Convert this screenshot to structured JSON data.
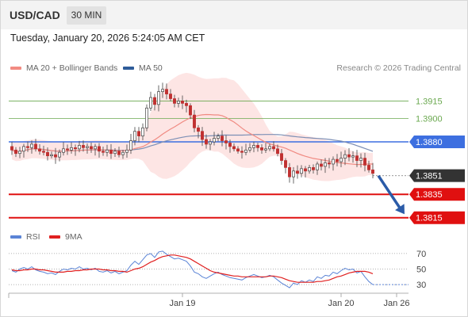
{
  "header": {
    "pair": "USD/CAD",
    "timeframe": "30 MIN",
    "timestamp": "Tuesday, January 20, 2026 5:24:05 AM CET"
  },
  "legend": {
    "ma20": {
      "label": "MA 20 + Bollinger Bands",
      "color": "#f28b82"
    },
    "ma50": {
      "label": "MA 50",
      "color": "#2e5c99"
    },
    "credit": "Research © 2026 Trading Central"
  },
  "rsi_legend": {
    "rsi": {
      "label": "RSI",
      "color": "#5b84d6"
    },
    "ma9": {
      "label": "9MA",
      "color": "#e02020"
    }
  },
  "chart_data": [
    {
      "type": "candlestick",
      "title": "USD/CAD",
      "ylim": [
        1.3808,
        1.3935
      ],
      "x_ticks": [
        {
          "index": 43,
          "label": "Jan 19"
        },
        {
          "index": 83,
          "label": "Jan 20"
        },
        {
          "index": 97,
          "label": "Jan 26"
        }
      ],
      "levels": [
        {
          "value": 1.3915,
          "label": "1.3915",
          "role": "resistance",
          "color": "#6aa84f"
        },
        {
          "value": 1.39,
          "label": "1.3900",
          "role": "resistance",
          "color": "#6aa84f"
        },
        {
          "value": 1.388,
          "label": "1.3880",
          "role": "pivot",
          "color": "#3d6fe0"
        },
        {
          "value": 1.3851,
          "label": "1.3851",
          "role": "last-price",
          "color": "#333333"
        },
        {
          "value": 1.3835,
          "label": "1.3835",
          "role": "support",
          "color": "#e01010"
        },
        {
          "value": 1.3815,
          "label": "1.3815",
          "role": "support",
          "color": "#e01010"
        }
      ],
      "forecast_arrow": {
        "from": 1.3851,
        "to": 1.3818
      },
      "closes": [
        1.3873,
        1.387,
        1.3872,
        1.3876,
        1.3875,
        1.3878,
        1.3874,
        1.3872,
        1.3871,
        1.3868,
        1.3869,
        1.3867,
        1.3871,
        1.3874,
        1.3873,
        1.3875,
        1.3874,
        1.3877,
        1.3875,
        1.3876,
        1.3874,
        1.3876,
        1.3872,
        1.3871,
        1.3873,
        1.387,
        1.3872,
        1.3869,
        1.3871,
        1.3873,
        1.3881,
        1.3889,
        1.3885,
        1.3892,
        1.3909,
        1.3918,
        1.3912,
        1.3923,
        1.3925,
        1.3921,
        1.3917,
        1.3913,
        1.3915,
        1.3913,
        1.3911,
        1.3903,
        1.3892,
        1.3889,
        1.3882,
        1.3878,
        1.388,
        1.3883,
        1.3885,
        1.3881,
        1.3879,
        1.3876,
        1.3874,
        1.3872,
        1.3871,
        1.3873,
        1.3875,
        1.3877,
        1.3875,
        1.3873,
        1.3874,
        1.3876,
        1.3874,
        1.387,
        1.3864,
        1.3858,
        1.385,
        1.3855,
        1.3853,
        1.3857,
        1.3855,
        1.3858,
        1.3856,
        1.3861,
        1.3859,
        1.3862,
        1.3861,
        1.3865,
        1.3863,
        1.3866,
        1.3869,
        1.3867,
        1.3868,
        1.3864,
        1.3866,
        1.386,
        1.3856,
        1.3853
      ],
      "series": [
        {
          "name": "MA 20",
          "color": "#f28b82"
        },
        {
          "name": "MA 50",
          "color": "#2e5c99"
        }
      ]
    },
    {
      "type": "line",
      "title": "RSI",
      "ylim": [
        22,
        78
      ],
      "y_ticks": [
        70,
        50,
        30
      ],
      "series": [
        {
          "name": "RSI",
          "color": "#5b84d6",
          "values": [
            48,
            46,
            50,
            52,
            50,
            53,
            49,
            47,
            46,
            44,
            45,
            43,
            47,
            50,
            49,
            51,
            50,
            53,
            50,
            51,
            49,
            51,
            47,
            46,
            48,
            45,
            47,
            44,
            46,
            48,
            55,
            60,
            56,
            62,
            68,
            70,
            65,
            72,
            73,
            69,
            66,
            63,
            64,
            62,
            60,
            54,
            46,
            44,
            40,
            38,
            41,
            44,
            46,
            43,
            41,
            39,
            38,
            37,
            36,
            39,
            41,
            43,
            41,
            39,
            40,
            42,
            40,
            36,
            32,
            29,
            26,
            32,
            30,
            35,
            33,
            36,
            34,
            40,
            38,
            42,
            41,
            46,
            44,
            48,
            51,
            49,
            50,
            45,
            47,
            40,
            34,
            30
          ]
        },
        {
          "name": "9MA",
          "color": "#e02020",
          "values": [
            49,
            48,
            48,
            49,
            49,
            50,
            50,
            49,
            49,
            48,
            47,
            46,
            46,
            46,
            47,
            47,
            48,
            48,
            49,
            49,
            50,
            50,
            50,
            49,
            49,
            48,
            48,
            47,
            47,
            46,
            48,
            50,
            51,
            53,
            56,
            59,
            61,
            64,
            66,
            67,
            68,
            68,
            67,
            66,
            65,
            63,
            60,
            57,
            54,
            51,
            48,
            46,
            45,
            44,
            43,
            42,
            41,
            41,
            40,
            40,
            40,
            40,
            40,
            40,
            40,
            41,
            41,
            40,
            39,
            37,
            35,
            34,
            33,
            33,
            33,
            33,
            33,
            34,
            34,
            35,
            36,
            38,
            40,
            41,
            43,
            45,
            46,
            47,
            47,
            47,
            46,
            44
          ]
        }
      ]
    }
  ]
}
